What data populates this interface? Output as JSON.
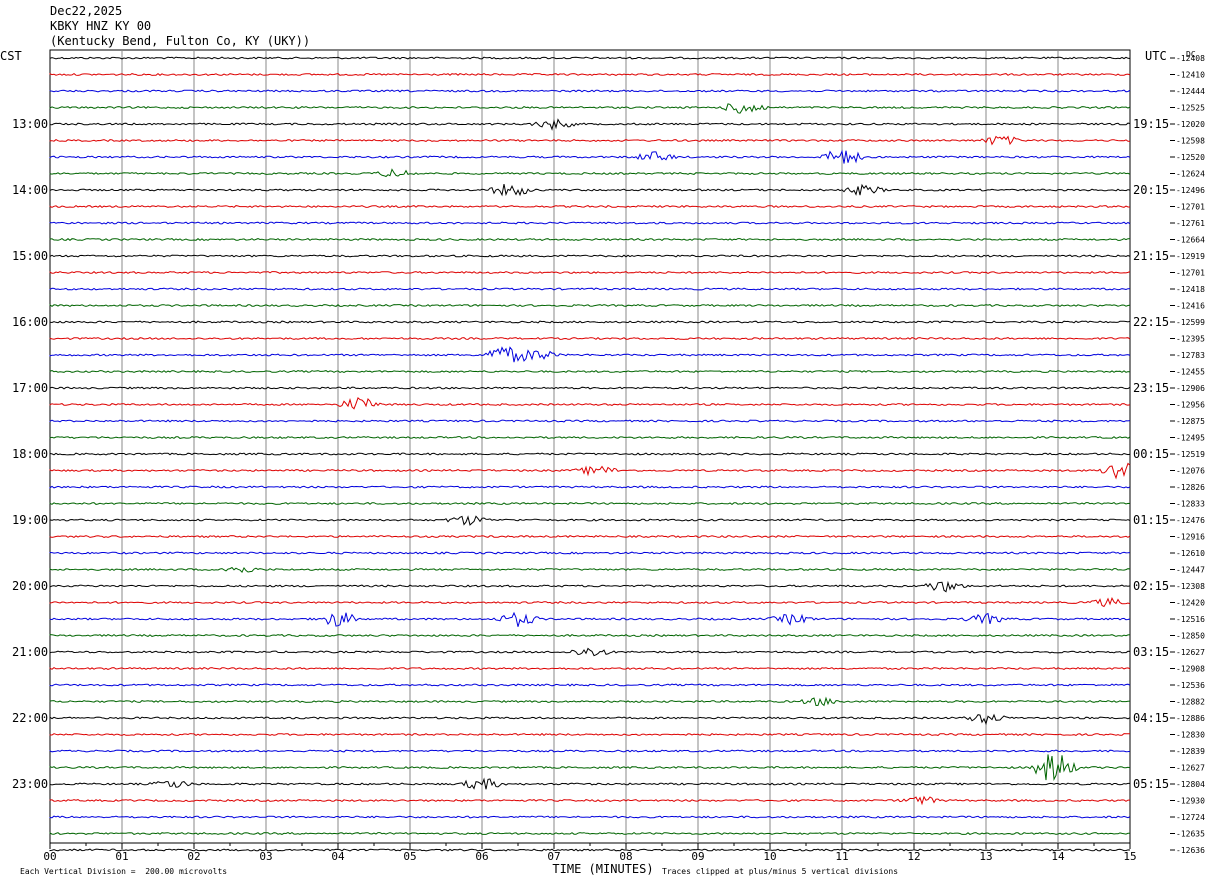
{
  "header": {
    "date": "Dec22,2025",
    "station": "KBKY HNZ KY 00",
    "location": "(Kentucky Bend, Fulton Co, KY (UKY))"
  },
  "labels": {
    "left_tz": "CST",
    "right_tz": "UTC",
    "dc": "DC",
    "xlabel": "TIME (MINUTES)",
    "scale_note": "Each Vertical Division =  200.00 microvolts",
    "clip_note": "Traces clipped at plus/minus 5 vertical divisions"
  },
  "chart_data": {
    "type": "line",
    "title": "KBKY HNZ KY 00",
    "xlabel": "TIME (MINUTES)",
    "xlim": [
      0,
      15
    ],
    "x_ticks": [
      "00",
      "01",
      "02",
      "03",
      "04",
      "05",
      "06",
      "07",
      "08",
      "09",
      "10",
      "11",
      "12",
      "13",
      "14",
      "15"
    ],
    "trace_colors": [
      "#000000",
      "#dd0000",
      "#0000dd",
      "#006400"
    ],
    "trace_minutes": 15,
    "left_time_labels": [
      "13:00",
      "14:00",
      "15:00",
      "16:00",
      "17:00",
      "18:00",
      "19:00",
      "20:00",
      "21:00",
      "22:00",
      "23:00"
    ],
    "right_time_labels": [
      "19:15",
      "20:15",
      "21:15",
      "22:15",
      "23:15",
      "00:15",
      "01:15",
      "02:15",
      "03:15",
      "04:15",
      "05:15"
    ],
    "dc_offsets": [
      "-12408",
      "-12410",
      "-12444",
      "-12525",
      "-12020",
      "-12598",
      "-12520",
      "-12624",
      "-12496",
      "-12701",
      "-12761",
      "-12664",
      "-12919",
      "-12701",
      "-12418",
      "-12416",
      "-12599",
      "-12395",
      "-12783",
      "-12455",
      "-12906",
      "-12956",
      "-12875",
      "-12495",
      "-12519",
      "-12076",
      "-12826",
      "-12833",
      "-12476",
      "-12916",
      "-12610",
      "-12447",
      "-12308",
      "-12420",
      "-12516",
      "-12850",
      "-12627",
      "-12908",
      "-12536",
      "-12882",
      "-12886",
      "-12830",
      "-12839",
      "-12627",
      "-12804",
      "-12930",
      "-12724",
      "-12635",
      "-12636"
    ],
    "events": [
      {
        "trace": 3,
        "minute": 9.65,
        "amp": 8
      },
      {
        "trace": 4,
        "minute": 7.0,
        "amp": 5
      },
      {
        "trace": 5,
        "minute": 13.2,
        "amp": 5
      },
      {
        "trace": 6,
        "minute": 11.0,
        "amp": 9
      },
      {
        "trace": 6,
        "minute": 8.4,
        "amp": 5
      },
      {
        "trace": 7,
        "minute": 4.8,
        "amp": 4
      },
      {
        "trace": 8,
        "minute": 6.4,
        "amp": 7
      },
      {
        "trace": 8,
        "minute": 11.3,
        "amp": 5
      },
      {
        "trace": 18,
        "minute": 6.3,
        "amp": 10
      },
      {
        "trace": 18,
        "minute": 6.75,
        "amp": 6
      },
      {
        "trace": 21,
        "minute": 4.3,
        "amp": 7
      },
      {
        "trace": 25,
        "minute": 7.6,
        "amp": 5
      },
      {
        "trace": 25,
        "minute": 14.9,
        "amp": 12
      },
      {
        "trace": 28,
        "minute": 5.8,
        "amp": 5
      },
      {
        "trace": 31,
        "minute": 2.6,
        "amp": 4
      },
      {
        "trace": 32,
        "minute": 12.4,
        "amp": 6
      },
      {
        "trace": 33,
        "minute": 14.7,
        "amp": 4
      },
      {
        "trace": 34,
        "minute": 4.0,
        "amp": 8
      },
      {
        "trace": 34,
        "minute": 6.5,
        "amp": 7
      },
      {
        "trace": 34,
        "minute": 10.3,
        "amp": 5
      },
      {
        "trace": 34,
        "minute": 13.0,
        "amp": 5
      },
      {
        "trace": 36,
        "minute": 7.5,
        "amp": 5
      },
      {
        "trace": 39,
        "minute": 10.7,
        "amp": 4
      },
      {
        "trace": 40,
        "minute": 13.0,
        "amp": 5
      },
      {
        "trace": 43,
        "minute": 13.95,
        "amp": 18
      },
      {
        "trace": 44,
        "minute": 6.0,
        "amp": 6
      },
      {
        "trace": 44,
        "minute": 1.7,
        "amp": 4
      },
      {
        "trace": 45,
        "minute": 12.1,
        "amp": 4
      }
    ]
  }
}
